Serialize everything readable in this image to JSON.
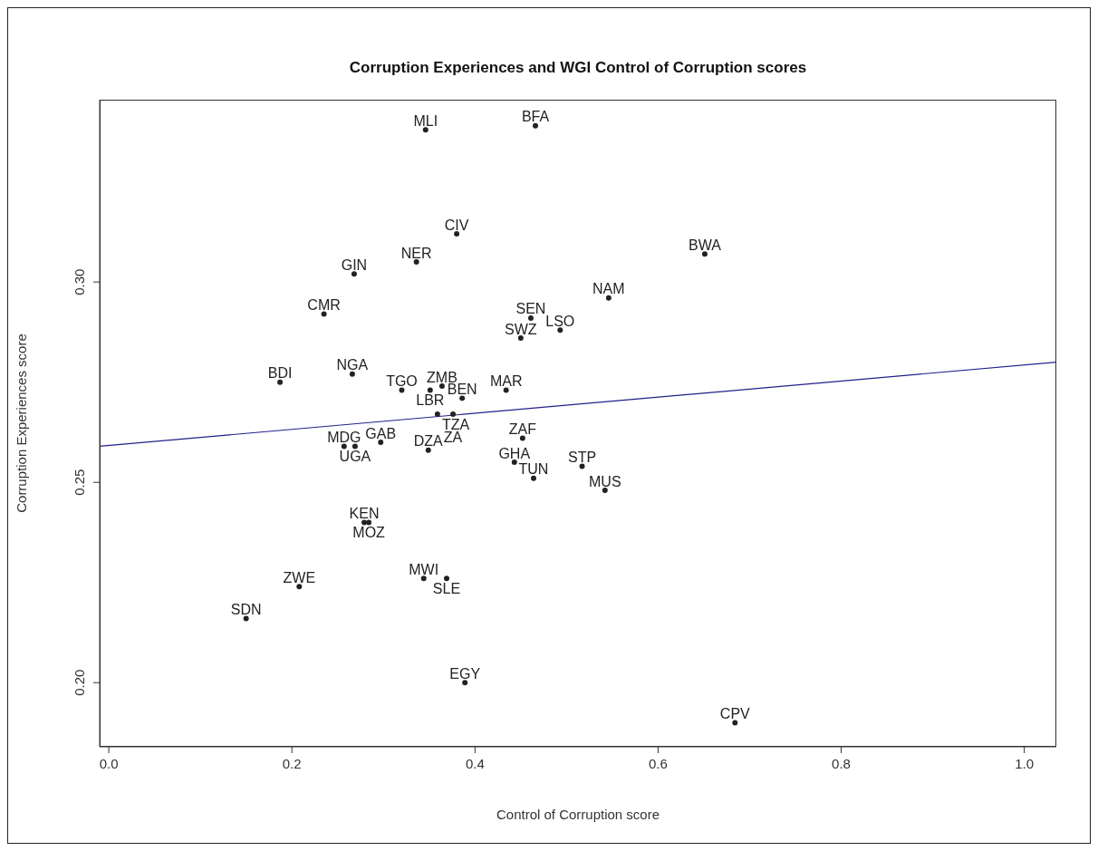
{
  "chart_data": {
    "type": "scatter",
    "title": "Corruption Experiences and WGI Control of Corruption scores",
    "xlabel": "Control of Corruption score",
    "ylabel": "Corruption Experiences score",
    "xlim": [
      -0.01,
      1.035
    ],
    "ylim": [
      0.184,
      0.3455
    ],
    "xticks": [
      {
        "value": 0,
        "label": "0.0"
      },
      {
        "value": 0.2,
        "label": "0.2"
      },
      {
        "value": 0.4,
        "label": "0.4"
      },
      {
        "value": 0.6,
        "label": "0.6"
      },
      {
        "value": 0.8,
        "label": "0.8"
      },
      {
        "value": 1,
        "label": "1.0"
      }
    ],
    "yticks": [
      {
        "value": 0.2,
        "label": "0.20"
      },
      {
        "value": 0.25,
        "label": "0.25"
      },
      {
        "value": 0.3,
        "label": "0.30"
      }
    ],
    "series": [
      {
        "type": "scatter",
        "marker": "circle",
        "color": "#222222",
        "x": [
          0.346,
          0.466,
          0.38,
          0.336,
          0.651,
          0.546,
          0.461,
          0.493,
          0.45,
          0.434,
          0.268,
          0.235,
          0.266,
          0.187,
          0.32,
          0.351,
          0.364,
          0.386,
          0.359,
          0.376,
          0.257,
          0.269,
          0.297,
          0.349,
          0.452,
          0.443,
          0.464,
          0.517,
          0.542,
          0.279,
          0.284,
          0.344,
          0.369,
          0.208,
          0.15,
          0.389,
          0.684
        ],
        "values": [
          0.338,
          0.339,
          0.312,
          0.305,
          0.307,
          0.296,
          0.291,
          0.288,
          0.286,
          0.273,
          0.302,
          0.292,
          0.277,
          0.275,
          0.273,
          0.273,
          0.274,
          0.271,
          0.267,
          0.267,
          0.259,
          0.259,
          0.26,
          0.258,
          0.261,
          0.255,
          0.251,
          0.254,
          0.248,
          0.24,
          0.24,
          0.226,
          0.226,
          0.224,
          0.216,
          0.2,
          0.19
        ],
        "value_labels": [
          "MLI",
          "BFA",
          "CIV",
          "NER",
          "BWA",
          "NAM",
          "SEN",
          "LSO",
          "SWZ",
          "MAR",
          "GIN",
          "CMR",
          "NGA",
          "BDI",
          "TGO",
          "LBR",
          "ZMB",
          "BEN",
          "TZA",
          "ZA",
          "MDG",
          "UGA",
          "GAB",
          "DZA",
          "ZAF",
          "GHA",
          "TUN",
          "STP",
          "MUS",
          "KEN",
          "MOZ",
          "MWI",
          "SLE",
          "ZWE",
          "SDN",
          "EGY",
          "CPV"
        ]
      },
      {
        "type": "line",
        "color": "#20208a",
        "x": [
          -0.01,
          1.035
        ],
        "values": [
          0.259,
          0.28
        ]
      }
    ]
  }
}
